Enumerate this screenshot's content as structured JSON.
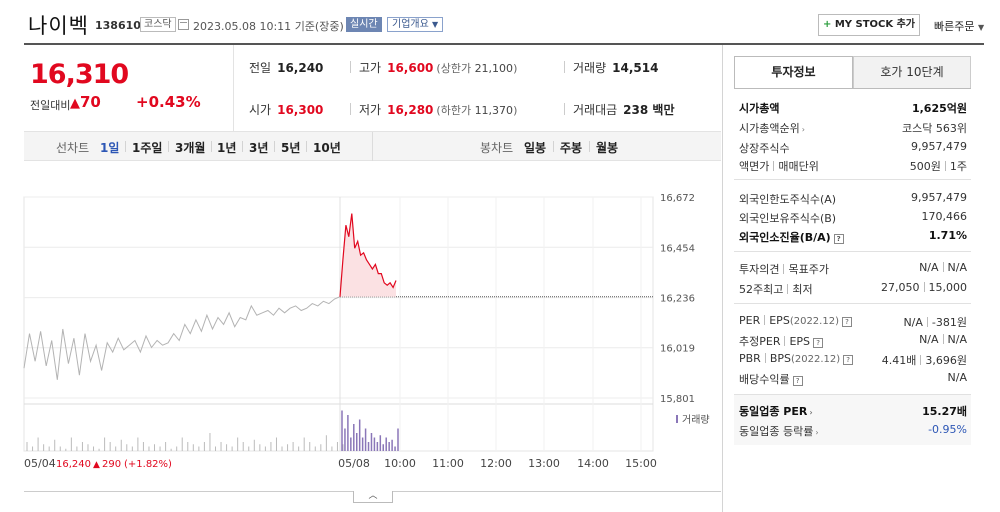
{
  "header": {
    "title": "나이벡",
    "code": "138610",
    "market": "코스닥",
    "date": "2023.05.08 10:11",
    "basis": "기준(장중)",
    "live": "실시간",
    "corp_info": "기업개요",
    "mystock": "MY STOCK 추가",
    "quick_order": "빠른주문"
  },
  "price": {
    "now": "16,310",
    "diff_label": "전일대비",
    "diff": "70",
    "rate": "+0.43%"
  },
  "quote": {
    "prev_label": "전일",
    "prev": "16,240",
    "high_label": "고가",
    "high": "16,600",
    "upper_label": "(상한가",
    "upper": "21,100",
    "upper_close": ")",
    "volume_label": "거래량",
    "volume": "14,514",
    "open_label": "시가",
    "open": "16,300",
    "low_label": "저가",
    "low": "16,280",
    "lower_label": "(하한가",
    "lower": "11,370",
    "lower_close": ")",
    "amount_label": "거래대금",
    "amount": "238 백만"
  },
  "tabs": {
    "line_label": "선차트",
    "periods": [
      "1일",
      "1주일",
      "3개월",
      "1년",
      "3년",
      "5년",
      "10년"
    ],
    "candle_label": "봉차트",
    "candles": [
      "일봉",
      "주봉",
      "월봉"
    ]
  },
  "chart_data": {
    "type": "line",
    "y_ticks": [
      "16,672",
      "16,454",
      "16,236",
      "16,019",
      "15,801"
    ],
    "y_tick_values": [
      16672,
      16454,
      16236,
      16019,
      15801
    ],
    "ylim": [
      15801,
      16672
    ],
    "prev_close": 16240,
    "x_labels": [
      "05/04",
      "05/08",
      "10:00",
      "11:00",
      "12:00",
      "13:00",
      "14:00",
      "15:00"
    ],
    "volume_label": "거래량",
    "prev_day": {
      "date": "05/04",
      "close": "16,240",
      "diff": "290",
      "rate": "(+1.82%)"
    },
    "series_prev": [
      15930,
      16080,
      15960,
      16090,
      15940,
      16050,
      15880,
      16100,
      15950,
      16060,
      15900,
      16080,
      15960,
      16030,
      15920,
      16040,
      16000,
      16060,
      16010,
      16030,
      16050,
      16000,
      16070,
      16020,
      16050,
      16030,
      16040,
      16080,
      16050,
      16120,
      16080,
      16140,
      16090,
      16160,
      16100,
      16150,
      16120,
      16170,
      16110,
      16150,
      16140,
      16200,
      16160,
      16170,
      16180,
      16160,
      16190,
      16170,
      16190,
      16200,
      16180,
      16190,
      16210,
      16200,
      16220,
      16210,
      16230,
      16240
    ],
    "series_today": [
      16240,
      16400,
      16550,
      16500,
      16600,
      16450,
      16480,
      16420,
      16430,
      16400,
      16380,
      16360,
      16380,
      16340,
      16340,
      16300,
      16290,
      16300,
      16280,
      16310
    ],
    "volume_prev": [
      0.2,
      0.1,
      0.3,
      0.15,
      0.1,
      0.25,
      0.1,
      0.05,
      0.3,
      0.1,
      0.2,
      0.15,
      0.1,
      0.05,
      0.3,
      0.2,
      0.1,
      0.25,
      0.15,
      0.1,
      0.3,
      0.2,
      0.1,
      0.15,
      0.1,
      0.2,
      0.05,
      0.1,
      0.3,
      0.2,
      0.15,
      0.1,
      0.2,
      0.4,
      0.1,
      0.2,
      0.15,
      0.1,
      0.3,
      0.2,
      0.1,
      0.25,
      0.15,
      0.1,
      0.2,
      0.3,
      0.1,
      0.15,
      0.2,
      0.1,
      0.3,
      0.2,
      0.1,
      0.15,
      0.35,
      0.1,
      0.2,
      0.15
    ],
    "volume_today": [
      0.9,
      0.5,
      0.8,
      0.3,
      0.6,
      0.4,
      0.7,
      0.3,
      0.5,
      0.2,
      0.4,
      0.3,
      0.2,
      0.35,
      0.15,
      0.3,
      0.2,
      0.25,
      0.1,
      0.5
    ],
    "colors": {
      "prev": "#b3b3b3",
      "today": "#e1081f",
      "fill": "#fbe1e3",
      "volume": "#8a76b8",
      "grid": "#ececec"
    }
  },
  "panel": {
    "tab_invest": "투자정보",
    "tab_orderbook": "호가 10단계",
    "market_cap_label": "시가총액",
    "market_cap": "1,625억원",
    "cap_rank_label": "시가총액순위",
    "cap_rank": "코스닥 563위",
    "shares_label": "상장주식수",
    "shares": "9,957,479",
    "par_label": "액면가",
    "unit_label": "매매단위",
    "par": "500원",
    "unit": "1주",
    "foreign_limit_label": "외국인한도주식수(A)",
    "foreign_limit": "9,957,479",
    "foreign_hold_label": "외국인보유주식수(B)",
    "foreign_hold": "170,466",
    "foreign_rate_label": "외국인소진율(B/A)",
    "foreign_rate": "1.71%",
    "opinion_label": "투자의견",
    "target_label": "목표주가",
    "opinion": "N/A",
    "target": "N/A",
    "w52_high_label": "52주최고",
    "w52_low_label": "최저",
    "w52_high": "27,050",
    "w52_low": "15,000",
    "per_label": "PER",
    "eps_label": "EPS",
    "eps_year": "(2022.12)",
    "per": "N/A",
    "eps": "-381원",
    "est_per_label": "추정PER",
    "est_eps_label": "EPS",
    "est_per": "N/A",
    "est_eps": "N/A",
    "pbr_label": "PBR",
    "bps_label": "BPS",
    "bps_year": "(2022.12)",
    "pbr": "4.41배",
    "bps": "3,696원",
    "div_label": "배당수익률",
    "div": "N/A",
    "ind_per_label": "동일업종 PER",
    "ind_per": "15.27배",
    "ind_rate_label": "동일업종 등락률",
    "ind_rate": "-0.95%"
  }
}
